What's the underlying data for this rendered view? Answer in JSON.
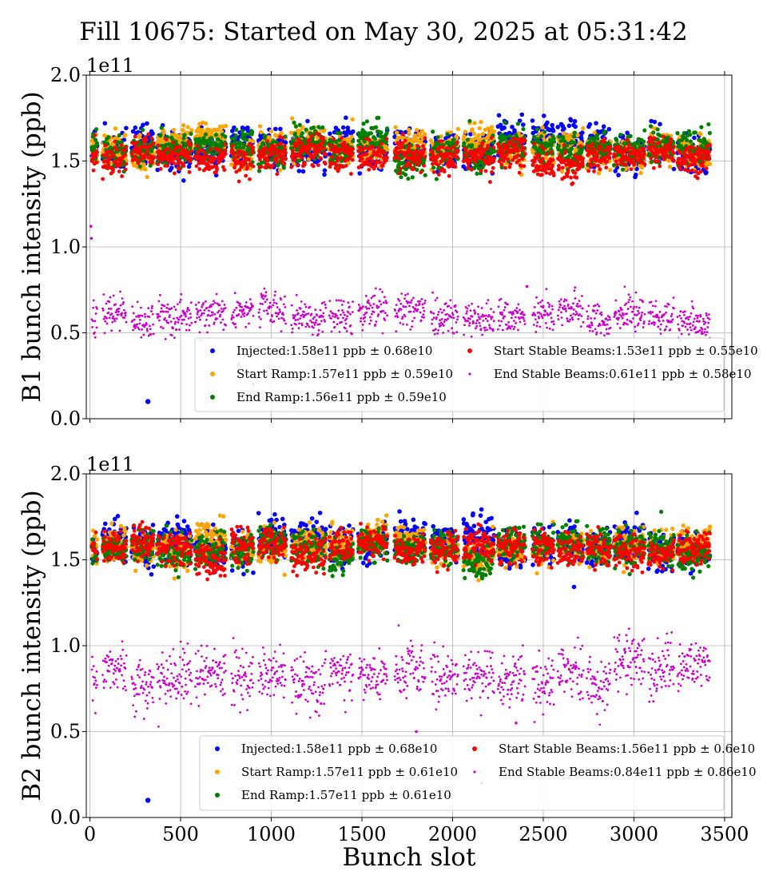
{
  "title": "Fill 10675: Started on May 30, 2025 at 05:31:42",
  "colors": {
    "injected": "#0000ff",
    "start_ramp": "#ffa500",
    "end_ramp": "#008000",
    "start_stable": "#ff0000",
    "end_stable": "#cc00cc"
  },
  "chart_data": [
    {
      "type": "scatter",
      "ylabel": "B1 bunch intensity (ppb)",
      "xlabel": "",
      "y_multiplier": "1e11",
      "xlim": [
        -20,
        3540
      ],
      "ylim": [
        0.0,
        2.0
      ],
      "xticks": [
        0,
        500,
        1000,
        1500,
        2000,
        2500,
        3000,
        3500
      ],
      "yticks": [
        "0.0",
        "0.5",
        "1.0",
        "1.5",
        "2.0"
      ],
      "grid": true,
      "legend_position": "lower-right",
      "trains_approx": [
        [
          10,
          40
        ],
        [
          70,
          200
        ],
        [
          230,
          350
        ],
        [
          370,
          560
        ],
        [
          580,
          750
        ],
        [
          780,
          900
        ],
        [
          930,
          1080
        ],
        [
          1110,
          1300
        ],
        [
          1320,
          1450
        ],
        [
          1480,
          1640
        ],
        [
          1680,
          1850
        ],
        [
          1880,
          2030
        ],
        [
          2060,
          2230
        ],
        [
          2250,
          2400
        ],
        [
          2440,
          2560
        ],
        [
          2580,
          2720
        ],
        [
          2740,
          2870
        ],
        [
          2890,
          3060
        ],
        [
          3080,
          3220
        ],
        [
          3240,
          3420
        ]
      ],
      "series": [
        {
          "name": "Injected:1.58e11 ppb ± 0.68e10",
          "key": "injected",
          "mean": 1.58,
          "std": 0.068,
          "outliers": [
            [
              320,
              0.1
            ]
          ]
        },
        {
          "name": "Start Ramp:1.57e11 ppb ± 0.59e10",
          "key": "start_ramp",
          "mean": 1.57,
          "std": 0.059
        },
        {
          "name": "End Ramp:1.56e11 ppb ± 0.59e10",
          "key": "end_ramp",
          "mean": 1.56,
          "std": 0.059
        },
        {
          "name": "Start Stable Beams:1.53e11 ppb ± 0.55e10",
          "key": "start_stable",
          "mean": 1.53,
          "std": 0.055
        },
        {
          "name": "End Stable Beams:0.61e11 ppb ± 0.58e10",
          "key": "end_stable",
          "mean": 0.61,
          "std": 0.058,
          "outliers": [
            [
              5,
              1.12
            ],
            [
              8,
              1.05
            ],
            [
              820,
              0.32
            ],
            [
              900,
              0.2
            ],
            [
              2410,
              0.77
            ]
          ]
        }
      ]
    },
    {
      "type": "scatter",
      "ylabel": "B2 bunch intensity (ppb)",
      "xlabel": "Bunch slot",
      "y_multiplier": "1e11",
      "xlim": [
        -20,
        3540
      ],
      "ylim": [
        0.0,
        2.0
      ],
      "xticks": [
        0,
        500,
        1000,
        1500,
        2000,
        2500,
        3000,
        3500
      ],
      "yticks": [
        "0.0",
        "0.5",
        "1.0",
        "1.5",
        "2.0"
      ],
      "grid": true,
      "legend_position": "lower-right",
      "trains_approx": [
        [
          10,
          40
        ],
        [
          70,
          200
        ],
        [
          230,
          350
        ],
        [
          370,
          560
        ],
        [
          580,
          750
        ],
        [
          780,
          900
        ],
        [
          930,
          1080
        ],
        [
          1110,
          1300
        ],
        [
          1320,
          1450
        ],
        [
          1480,
          1640
        ],
        [
          1680,
          1850
        ],
        [
          1880,
          2030
        ],
        [
          2060,
          2230
        ],
        [
          2250,
          2400
        ],
        [
          2440,
          2560
        ],
        [
          2580,
          2720
        ],
        [
          2740,
          2870
        ],
        [
          2890,
          3060
        ],
        [
          3080,
          3220
        ],
        [
          3240,
          3420
        ]
      ],
      "series": [
        {
          "name": "Injected:1.58e11 ppb ± 0.68e10",
          "key": "injected",
          "mean": 1.58,
          "std": 0.068,
          "outliers": [
            [
              320,
              0.1
            ]
          ]
        },
        {
          "name": "Start Ramp:1.57e11 ppb ± 0.61e10",
          "key": "start_ramp",
          "mean": 1.57,
          "std": 0.061
        },
        {
          "name": "End Ramp:1.57e11 ppb ± 0.61e10",
          "key": "end_ramp",
          "mean": 1.57,
          "std": 0.061
        },
        {
          "name": "Start Stable Beams:1.56e11 ppb ± 0.6e10",
          "key": "start_stable",
          "mean": 1.56,
          "std": 0.06
        },
        {
          "name": "End Stable Beams:0.84e11 ppb ± 0.86e10",
          "key": "end_stable",
          "mean": 0.84,
          "std": 0.086,
          "outliers": [
            [
              1800,
              0.5
            ],
            [
              2160,
              0.2
            ],
            [
              2350,
              0.55
            ]
          ]
        }
      ]
    }
  ]
}
